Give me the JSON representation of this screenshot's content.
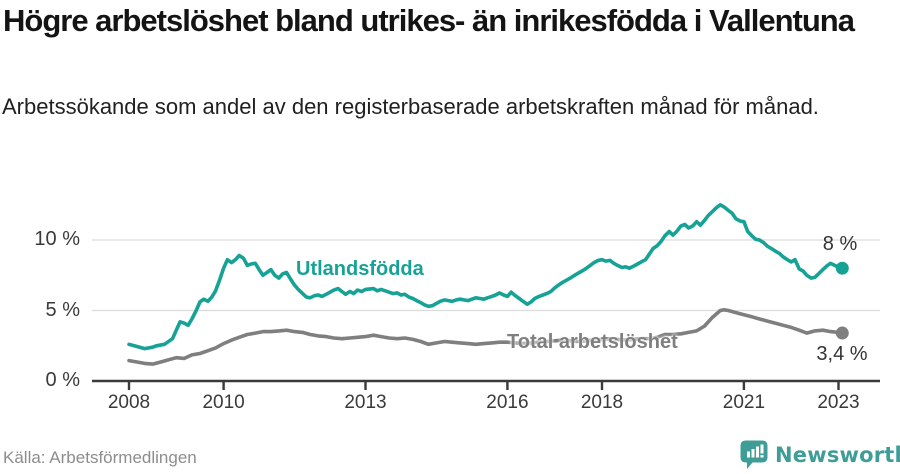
{
  "header": {
    "title": "Högre arbetslöshet bland utrikes- än inrikesfödda i Vallentuna",
    "subtitle": "Arbetssökande som andel av den registerbaserade arbetskraften månad för månad."
  },
  "footer": {
    "source": "Källa: Arbetsförmedlingen",
    "brand": "Newsworthy"
  },
  "colors": {
    "foreign_line": "#17a296",
    "total_line": "#7f7f7f",
    "brand_teal": "#3f9d97",
    "axis": "#3a3a3a",
    "grid": "#dcdcdc",
    "value_label": "#333333"
  },
  "chart_data": {
    "type": "line",
    "title": "Högre arbetslöshet bland utrikes- än inrikesfödda i Vallentuna",
    "xlabel": "",
    "ylabel": "%",
    "x_range": [
      2008,
      2023.1
    ],
    "ylim": [
      0,
      13
    ],
    "grid": "horizontal",
    "legend_position": "inline-labels",
    "x_ticks": [
      2008,
      2010,
      2013,
      2016,
      2018,
      2021,
      2023
    ],
    "y_ticks": [
      {
        "value": 0,
        "label": "0 %"
      },
      {
        "value": 5,
        "label": "5 %"
      },
      {
        "value": 10,
        "label": "10 %"
      }
    ],
    "series": [
      {
        "name": "Utlandsfödda",
        "color": "#17a296",
        "end_label": "8 %",
        "end_value": 8.0,
        "points": [
          [
            2008.0,
            2.6
          ],
          [
            2008.17,
            2.45
          ],
          [
            2008.33,
            2.3
          ],
          [
            2008.5,
            2.4
          ],
          [
            2008.58,
            2.5
          ],
          [
            2008.75,
            2.6
          ],
          [
            2008.92,
            3.0
          ],
          [
            2009.0,
            3.6
          ],
          [
            2009.08,
            4.2
          ],
          [
            2009.17,
            4.1
          ],
          [
            2009.25,
            3.95
          ],
          [
            2009.33,
            4.4
          ],
          [
            2009.42,
            5.0
          ],
          [
            2009.5,
            5.6
          ],
          [
            2009.58,
            5.8
          ],
          [
            2009.67,
            5.65
          ],
          [
            2009.75,
            5.95
          ],
          [
            2009.83,
            6.4
          ],
          [
            2009.92,
            7.2
          ],
          [
            2010.0,
            8.0
          ],
          [
            2010.08,
            8.6
          ],
          [
            2010.17,
            8.4
          ],
          [
            2010.25,
            8.6
          ],
          [
            2010.33,
            8.9
          ],
          [
            2010.42,
            8.7
          ],
          [
            2010.5,
            8.2
          ],
          [
            2010.58,
            8.3
          ],
          [
            2010.67,
            8.35
          ],
          [
            2010.75,
            7.9
          ],
          [
            2010.83,
            7.5
          ],
          [
            2010.92,
            7.7
          ],
          [
            2011.0,
            7.9
          ],
          [
            2011.08,
            7.5
          ],
          [
            2011.17,
            7.3
          ],
          [
            2011.25,
            7.6
          ],
          [
            2011.33,
            7.7
          ],
          [
            2011.42,
            7.2
          ],
          [
            2011.5,
            6.8
          ],
          [
            2011.58,
            6.5
          ],
          [
            2011.67,
            6.2
          ],
          [
            2011.75,
            5.95
          ],
          [
            2011.83,
            5.9
          ],
          [
            2011.92,
            6.05
          ],
          [
            2012.0,
            6.1
          ],
          [
            2012.08,
            6.0
          ],
          [
            2012.17,
            6.15
          ],
          [
            2012.25,
            6.3
          ],
          [
            2012.33,
            6.45
          ],
          [
            2012.42,
            6.55
          ],
          [
            2012.5,
            6.35
          ],
          [
            2012.58,
            6.15
          ],
          [
            2012.67,
            6.35
          ],
          [
            2012.75,
            6.2
          ],
          [
            2012.83,
            6.45
          ],
          [
            2012.92,
            6.35
          ],
          [
            2013.0,
            6.5
          ],
          [
            2013.17,
            6.55
          ],
          [
            2013.25,
            6.4
          ],
          [
            2013.33,
            6.5
          ],
          [
            2013.5,
            6.3
          ],
          [
            2013.58,
            6.2
          ],
          [
            2013.67,
            6.25
          ],
          [
            2013.75,
            6.1
          ],
          [
            2013.83,
            6.15
          ],
          [
            2013.92,
            5.95
          ],
          [
            2014.0,
            5.85
          ],
          [
            2014.08,
            5.7
          ],
          [
            2014.17,
            5.55
          ],
          [
            2014.25,
            5.4
          ],
          [
            2014.33,
            5.3
          ],
          [
            2014.42,
            5.35
          ],
          [
            2014.5,
            5.5
          ],
          [
            2014.58,
            5.65
          ],
          [
            2014.67,
            5.75
          ],
          [
            2014.75,
            5.7
          ],
          [
            2014.83,
            5.65
          ],
          [
            2014.92,
            5.75
          ],
          [
            2015.0,
            5.8
          ],
          [
            2015.08,
            5.75
          ],
          [
            2015.17,
            5.7
          ],
          [
            2015.25,
            5.8
          ],
          [
            2015.33,
            5.9
          ],
          [
            2015.42,
            5.85
          ],
          [
            2015.5,
            5.8
          ],
          [
            2015.58,
            5.9
          ],
          [
            2015.67,
            6.0
          ],
          [
            2015.75,
            6.1
          ],
          [
            2015.83,
            6.25
          ],
          [
            2015.92,
            6.1
          ],
          [
            2016.0,
            6.0
          ],
          [
            2016.08,
            6.3
          ],
          [
            2016.17,
            6.05
          ],
          [
            2016.25,
            5.85
          ],
          [
            2016.33,
            5.65
          ],
          [
            2016.42,
            5.45
          ],
          [
            2016.5,
            5.6
          ],
          [
            2016.58,
            5.85
          ],
          [
            2016.67,
            6.0
          ],
          [
            2016.75,
            6.1
          ],
          [
            2016.83,
            6.2
          ],
          [
            2016.92,
            6.35
          ],
          [
            2017.0,
            6.6
          ],
          [
            2017.08,
            6.8
          ],
          [
            2017.17,
            7.0
          ],
          [
            2017.25,
            7.15
          ],
          [
            2017.33,
            7.3
          ],
          [
            2017.42,
            7.5
          ],
          [
            2017.5,
            7.65
          ],
          [
            2017.58,
            7.8
          ],
          [
            2017.67,
            8.0
          ],
          [
            2017.75,
            8.2
          ],
          [
            2017.83,
            8.4
          ],
          [
            2017.92,
            8.55
          ],
          [
            2018.0,
            8.6
          ],
          [
            2018.08,
            8.5
          ],
          [
            2018.17,
            8.55
          ],
          [
            2018.25,
            8.35
          ],
          [
            2018.33,
            8.2
          ],
          [
            2018.42,
            8.05
          ],
          [
            2018.5,
            8.1
          ],
          [
            2018.58,
            8.0
          ],
          [
            2018.67,
            8.15
          ],
          [
            2018.75,
            8.3
          ],
          [
            2018.83,
            8.45
          ],
          [
            2018.92,
            8.6
          ],
          [
            2019.0,
            9.0
          ],
          [
            2019.08,
            9.4
          ],
          [
            2019.17,
            9.6
          ],
          [
            2019.25,
            9.9
          ],
          [
            2019.33,
            10.3
          ],
          [
            2019.42,
            10.6
          ],
          [
            2019.5,
            10.35
          ],
          [
            2019.58,
            10.6
          ],
          [
            2019.67,
            11.0
          ],
          [
            2019.75,
            11.1
          ],
          [
            2019.83,
            10.85
          ],
          [
            2019.92,
            11.0
          ],
          [
            2020.0,
            11.3
          ],
          [
            2020.08,
            11.05
          ],
          [
            2020.17,
            11.4
          ],
          [
            2020.25,
            11.75
          ],
          [
            2020.33,
            12.0
          ],
          [
            2020.42,
            12.3
          ],
          [
            2020.5,
            12.5
          ],
          [
            2020.58,
            12.35
          ],
          [
            2020.67,
            12.1
          ],
          [
            2020.75,
            11.9
          ],
          [
            2020.83,
            11.5
          ],
          [
            2020.92,
            11.35
          ],
          [
            2021.0,
            11.3
          ],
          [
            2021.08,
            10.6
          ],
          [
            2021.17,
            10.3
          ],
          [
            2021.25,
            10.05
          ],
          [
            2021.33,
            10.0
          ],
          [
            2021.42,
            9.8
          ],
          [
            2021.5,
            9.55
          ],
          [
            2021.58,
            9.4
          ],
          [
            2021.67,
            9.2
          ],
          [
            2021.75,
            9.05
          ],
          [
            2021.83,
            8.8
          ],
          [
            2021.92,
            8.6
          ],
          [
            2022.0,
            8.45
          ],
          [
            2022.08,
            8.6
          ],
          [
            2022.17,
            7.95
          ],
          [
            2022.25,
            7.8
          ],
          [
            2022.33,
            7.5
          ],
          [
            2022.42,
            7.3
          ],
          [
            2022.5,
            7.35
          ],
          [
            2022.58,
            7.6
          ],
          [
            2022.67,
            7.9
          ],
          [
            2022.75,
            8.15
          ],
          [
            2022.83,
            8.35
          ],
          [
            2022.92,
            8.2
          ],
          [
            2023.0,
            8.1
          ],
          [
            2023.08,
            8.0
          ]
        ]
      },
      {
        "name": "Total arbetslöshet",
        "color": "#7f7f7f",
        "end_label": "3,4 %",
        "end_value": 3.4,
        "points": [
          [
            2008.0,
            1.45
          ],
          [
            2008.17,
            1.35
          ],
          [
            2008.33,
            1.25
          ],
          [
            2008.5,
            1.2
          ],
          [
            2008.67,
            1.35
          ],
          [
            2008.83,
            1.5
          ],
          [
            2009.0,
            1.65
          ],
          [
            2009.17,
            1.6
          ],
          [
            2009.33,
            1.85
          ],
          [
            2009.5,
            1.95
          ],
          [
            2009.67,
            2.15
          ],
          [
            2009.83,
            2.35
          ],
          [
            2010.0,
            2.65
          ],
          [
            2010.17,
            2.9
          ],
          [
            2010.33,
            3.1
          ],
          [
            2010.5,
            3.3
          ],
          [
            2010.67,
            3.4
          ],
          [
            2010.83,
            3.5
          ],
          [
            2011.0,
            3.5
          ],
          [
            2011.17,
            3.55
          ],
          [
            2011.33,
            3.6
          ],
          [
            2011.5,
            3.5
          ],
          [
            2011.67,
            3.45
          ],
          [
            2011.83,
            3.3
          ],
          [
            2012.0,
            3.2
          ],
          [
            2012.17,
            3.15
          ],
          [
            2012.33,
            3.05
          ],
          [
            2012.5,
            3.0
          ],
          [
            2012.67,
            3.05
          ],
          [
            2012.83,
            3.1
          ],
          [
            2013.0,
            3.15
          ],
          [
            2013.17,
            3.25
          ],
          [
            2013.33,
            3.15
          ],
          [
            2013.5,
            3.05
          ],
          [
            2013.67,
            3.0
          ],
          [
            2013.83,
            3.05
          ],
          [
            2014.0,
            2.95
          ],
          [
            2014.17,
            2.8
          ],
          [
            2014.33,
            2.6
          ],
          [
            2014.5,
            2.7
          ],
          [
            2014.67,
            2.8
          ],
          [
            2014.83,
            2.75
          ],
          [
            2015.0,
            2.7
          ],
          [
            2015.17,
            2.65
          ],
          [
            2015.33,
            2.6
          ],
          [
            2015.5,
            2.65
          ],
          [
            2015.67,
            2.7
          ],
          [
            2015.83,
            2.75
          ],
          [
            2016.0,
            2.75
          ],
          [
            2016.17,
            2.7
          ],
          [
            2016.33,
            2.65
          ],
          [
            2016.5,
            2.7
          ],
          [
            2016.67,
            2.75
          ],
          [
            2016.83,
            2.8
          ],
          [
            2017.0,
            2.85
          ],
          [
            2017.17,
            2.9
          ],
          [
            2017.33,
            2.85
          ],
          [
            2017.5,
            2.8
          ],
          [
            2017.67,
            2.85
          ],
          [
            2017.83,
            2.9
          ],
          [
            2018.0,
            2.95
          ],
          [
            2018.17,
            3.0
          ],
          [
            2018.33,
            2.95
          ],
          [
            2018.5,
            2.9
          ],
          [
            2018.67,
            2.95
          ],
          [
            2018.83,
            3.0
          ],
          [
            2019.0,
            3.0
          ],
          [
            2019.17,
            3.1
          ],
          [
            2019.33,
            3.3
          ],
          [
            2019.5,
            3.3
          ],
          [
            2019.67,
            3.35
          ],
          [
            2019.83,
            3.45
          ],
          [
            2020.0,
            3.55
          ],
          [
            2020.17,
            3.9
          ],
          [
            2020.33,
            4.5
          ],
          [
            2020.5,
            5.0
          ],
          [
            2020.58,
            5.05
          ],
          [
            2020.67,
            5.0
          ],
          [
            2020.83,
            4.85
          ],
          [
            2021.0,
            4.7
          ],
          [
            2021.17,
            4.55
          ],
          [
            2021.33,
            4.4
          ],
          [
            2021.5,
            4.25
          ],
          [
            2021.67,
            4.1
          ],
          [
            2021.83,
            3.95
          ],
          [
            2022.0,
            3.8
          ],
          [
            2022.17,
            3.6
          ],
          [
            2022.33,
            3.4
          ],
          [
            2022.5,
            3.55
          ],
          [
            2022.67,
            3.6
          ],
          [
            2022.83,
            3.5
          ],
          [
            2023.0,
            3.45
          ],
          [
            2023.08,
            3.4
          ]
        ]
      }
    ]
  }
}
